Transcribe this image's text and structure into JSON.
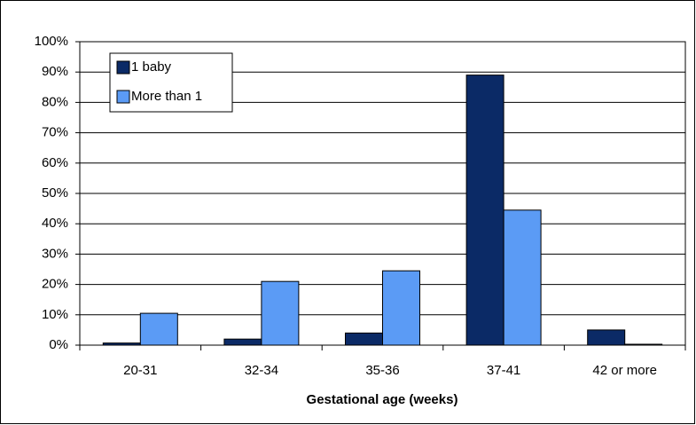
{
  "chart_data": {
    "type": "bar",
    "x_label": "Gestational age (weeks)",
    "categories": [
      "20-31",
      "32-34",
      "35-36",
      "37-41",
      "42 or more"
    ],
    "series": [
      {
        "name": "1 baby",
        "color": "#0b2a66",
        "values": [
          0.7,
          2,
          4,
          89,
          5
        ]
      },
      {
        "name": "More than 1",
        "color": "#5b9bf5",
        "values": [
          10.5,
          21,
          24.5,
          44.5,
          0.3
        ]
      }
    ],
    "ylim": [
      0,
      100
    ],
    "yticks": [
      {
        "value": 0,
        "label": "0%"
      },
      {
        "value": 10,
        "label": "10%"
      },
      {
        "value": 20,
        "label": "20%"
      },
      {
        "value": 30,
        "label": "30%"
      },
      {
        "value": 40,
        "label": "40%"
      },
      {
        "value": 50,
        "label": "50%"
      },
      {
        "value": 60,
        "label": "60%"
      },
      {
        "value": 70,
        "label": "70%"
      },
      {
        "value": 80,
        "label": "80%"
      },
      {
        "value": 90,
        "label": "90%"
      },
      {
        "value": 100,
        "label": "100%"
      }
    ],
    "grid": true,
    "legend": "upper left"
  }
}
